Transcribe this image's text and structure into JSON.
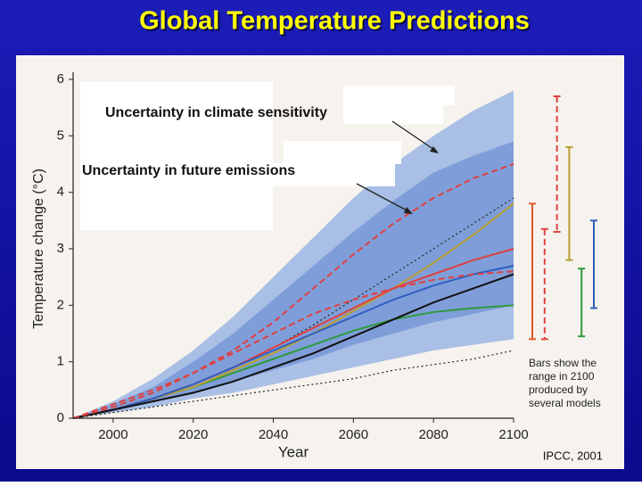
{
  "chart_data": {
    "type": "line",
    "title": "Global Temperature Predictions",
    "xlabel": "Year",
    "ylabel": "Temperature change (°C)",
    "x": [
      1990,
      2000,
      2010,
      2020,
      2030,
      2040,
      2050,
      2060,
      2070,
      2080,
      2090,
      2100
    ],
    "xlim": [
      1990,
      2100
    ],
    "xticks": [
      2000,
      2020,
      2040,
      2060,
      2080,
      2100
    ],
    "ylim": [
      0,
      6
    ],
    "yticks": [
      0,
      1,
      2,
      3,
      4,
      5,
      6
    ],
    "bands": [
      {
        "color": "#a9bfe6",
        "upper": [
          0,
          0.3,
          0.7,
          1.2,
          1.8,
          2.5,
          3.2,
          3.9,
          4.5,
          5.0,
          5.45,
          5.8
        ],
        "lower": [
          0,
          0.1,
          0.2,
          0.35,
          0.45,
          0.6,
          0.75,
          0.9,
          1.05,
          1.2,
          1.3,
          1.4
        ]
      },
      {
        "color": "#7f9ed9",
        "upper": [
          0,
          0.25,
          0.55,
          1.0,
          1.5,
          2.1,
          2.7,
          3.3,
          3.85,
          4.35,
          4.65,
          4.9
        ],
        "lower": [
          0,
          0.12,
          0.28,
          0.45,
          0.65,
          0.85,
          1.05,
          1.3,
          1.5,
          1.7,
          1.85,
          2.0
        ]
      }
    ],
    "series": [
      {
        "color": "#222222",
        "style": "dotted",
        "values": [
          0,
          0.15,
          0.35,
          0.6,
          0.9,
          1.25,
          1.65,
          2.1,
          2.55,
          3.0,
          3.45,
          3.9
        ]
      },
      {
        "color": "#222222",
        "style": "dotted",
        "values": [
          0,
          0.1,
          0.2,
          0.3,
          0.4,
          0.5,
          0.6,
          0.7,
          0.85,
          0.95,
          1.05,
          1.2
        ]
      },
      {
        "color": "#2e9a3c",
        "style": "solid",
        "values": [
          0,
          0.15,
          0.35,
          0.55,
          0.8,
          1.05,
          1.3,
          1.55,
          1.75,
          1.88,
          1.95,
          2.0
        ]
      },
      {
        "color": "#b8a030",
        "style": "solid",
        "values": [
          0,
          0.15,
          0.35,
          0.55,
          0.85,
          1.15,
          1.5,
          1.9,
          2.3,
          2.75,
          3.25,
          3.8
        ]
      },
      {
        "color": "#e04040",
        "style": "solid",
        "values": [
          0,
          0.15,
          0.35,
          0.6,
          0.9,
          1.25,
          1.6,
          1.95,
          2.3,
          2.55,
          2.8,
          3.0
        ]
      },
      {
        "color": "#2f5fbf",
        "style": "solid",
        "values": [
          0,
          0.15,
          0.35,
          0.6,
          0.9,
          1.2,
          1.5,
          1.8,
          2.1,
          2.35,
          2.55,
          2.7
        ]
      },
      {
        "color": "#111111",
        "style": "solid",
        "values": [
          0,
          0.15,
          0.3,
          0.45,
          0.65,
          0.9,
          1.15,
          1.45,
          1.75,
          2.05,
          2.3,
          2.55
        ]
      },
      {
        "color": "#e04040",
        "style": "dashed",
        "values": [
          0,
          0.2,
          0.45,
          0.8,
          1.2,
          1.7,
          2.3,
          2.9,
          3.45,
          3.9,
          4.25,
          4.5
        ]
      },
      {
        "color": "#e04040",
        "style": "dashed",
        "values": [
          0,
          0.25,
          0.5,
          0.8,
          1.15,
          1.5,
          1.85,
          2.1,
          2.3,
          2.45,
          2.55,
          2.6
        ]
      }
    ],
    "range_bars": [
      {
        "color": "#e05a2a",
        "style": "solid",
        "low": 1.4,
        "high": 3.8
      },
      {
        "color": "#e04040",
        "style": "dashed",
        "low": 1.4,
        "high": 3.35
      },
      {
        "color": "#e04040",
        "style": "dashed",
        "low": 3.3,
        "high": 5.7
      },
      {
        "color": "#b8a030",
        "style": "solid",
        "low": 2.8,
        "high": 4.8
      },
      {
        "color": "#2e9a3c",
        "style": "solid",
        "low": 1.45,
        "high": 2.65
      },
      {
        "color": "#2f5fbf",
        "style": "solid",
        "low": 1.95,
        "high": 3.5
      }
    ],
    "annotations": [
      "Uncertainty in climate sensitivity",
      "Uncertainty in future emissions"
    ],
    "bars_note": [
      "Bars show the",
      "range in 2100",
      "produced by",
      "several models"
    ],
    "source": "IPCC, 2001"
  }
}
